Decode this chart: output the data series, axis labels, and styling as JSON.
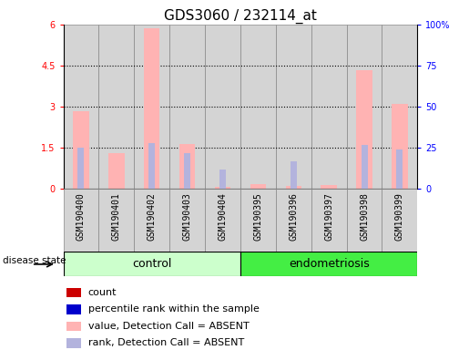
{
  "title": "GDS3060 / 232114_at",
  "samples": [
    "GSM190400",
    "GSM190401",
    "GSM190402",
    "GSM190403",
    "GSM190404",
    "GSM190395",
    "GSM190396",
    "GSM190397",
    "GSM190398",
    "GSM190399"
  ],
  "value_absent": [
    2.85,
    1.3,
    5.85,
    1.65,
    0.08,
    0.18,
    0.12,
    0.13,
    4.35,
    3.1
  ],
  "rank_absent_pct": [
    25,
    0,
    28,
    22,
    12,
    0,
    17,
    0,
    27,
    24
  ],
  "ylim_left": [
    0,
    6
  ],
  "ylim_right": [
    0,
    100
  ],
  "yticks_left": [
    0,
    1.5,
    3.0,
    4.5,
    6.0
  ],
  "ytick_labels_left": [
    "0",
    "1.5",
    "3",
    "4.5",
    "6"
  ],
  "yticks_right": [
    0,
    25,
    50,
    75,
    100
  ],
  "ytick_labels_right": [
    "0",
    "25",
    "50",
    "75",
    "100%"
  ],
  "color_count": "#cc0000",
  "color_percentile": "#0000cc",
  "color_value_absent": "#ffb3b3",
  "color_rank_absent": "#b3b3dd",
  "control_color_light": "#ccffcc",
  "control_color_dark": "#44ee44",
  "group_label_fontsize": 9,
  "title_fontsize": 11,
  "tick_fontsize": 7,
  "legend_fontsize": 8
}
